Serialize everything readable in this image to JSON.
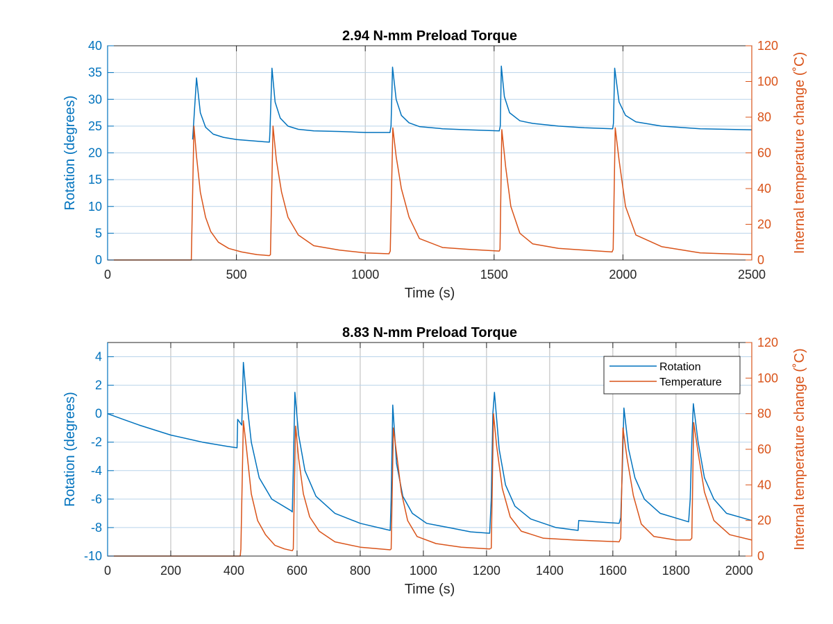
{
  "colors": {
    "rotation": "#0072bd",
    "temperature": "#d95319",
    "grid_blue": "#b9d3ea",
    "grid_gray": "#b8b8b8",
    "axes": "#262626"
  },
  "chart_data": [
    {
      "type": "line",
      "title": "2.94 N-mm Preload Torque",
      "xlabel": "Time (s)",
      "ylabel": "Rotation (degrees)",
      "ylabel_right": "Internal temperature change (˚C)",
      "xlim": [
        0,
        2500
      ],
      "ylim": [
        0,
        40
      ],
      "ylim_right": [
        0,
        120
      ],
      "xticks": [
        0,
        500,
        1000,
        1500,
        2000,
        2500
      ],
      "yticks": [
        0,
        5,
        10,
        15,
        20,
        25,
        30,
        35,
        40
      ],
      "yticks_right": [
        0,
        20,
        40,
        60,
        80,
        100,
        120
      ],
      "xtick_labels": [
        "0",
        "500",
        "1000",
        "1500",
        "2000",
        "2500"
      ],
      "ytick_labels": [
        "0",
        "5",
        "10",
        "15",
        "20",
        "25",
        "30",
        "35",
        "40"
      ],
      "ytick_labels_right": [
        "0",
        "20",
        "40",
        "60",
        "80",
        "100",
        "120"
      ],
      "grid": true,
      "legend": null,
      "series": [
        {
          "axis": "left",
          "color_key": "rotation",
          "x": [
            330,
            345,
            360,
            380,
            410,
            450,
            500,
            550,
            600,
            628,
            630,
            638,
            650,
            670,
            700,
            740,
            800,
            900,
            1000,
            1096,
            1100,
            1106,
            1120,
            1140,
            1170,
            1210,
            1300,
            1400,
            1520,
            1524,
            1528,
            1540,
            1560,
            1600,
            1650,
            1750,
            1850,
            1960,
            1963,
            1968,
            1985,
            2010,
            2050,
            2150,
            2300,
            2500
          ],
          "y": [
            22.5,
            34.0,
            27.5,
            24.8,
            23.5,
            22.9,
            22.5,
            22.3,
            22.1,
            22.0,
            24.0,
            35.8,
            29.5,
            26.5,
            25.0,
            24.4,
            24.1,
            24.0,
            23.8,
            23.8,
            25.0,
            36.0,
            30.0,
            27.0,
            25.6,
            24.9,
            24.5,
            24.3,
            24.1,
            25.0,
            36.2,
            30.5,
            27.5,
            26.0,
            25.5,
            25.0,
            24.7,
            24.5,
            25.5,
            35.8,
            29.5,
            27.0,
            25.8,
            25.0,
            24.5,
            24.3
          ]
        },
        {
          "axis": "right",
          "color_key": "temperature",
          "x": [
            0,
            325,
            335,
            345,
            360,
            380,
            400,
            430,
            470,
            520,
            580,
            628,
            632,
            642,
            655,
            675,
            700,
            740,
            800,
            900,
            1000,
            1092,
            1097,
            1107,
            1120,
            1140,
            1170,
            1210,
            1300,
            1400,
            1520,
            1523,
            1530,
            1545,
            1565,
            1600,
            1650,
            1750,
            1850,
            1958,
            1962,
            1970,
            1985,
            2010,
            2050,
            2150,
            2300,
            2500
          ],
          "y": [
            0,
            0,
            75,
            58,
            38,
            24,
            16,
            10,
            6.5,
            4.5,
            3.0,
            2.5,
            3.0,
            75,
            56,
            38,
            24,
            14,
            8,
            5.5,
            4.0,
            3.5,
            5.0,
            74,
            58,
            40,
            24,
            12,
            7,
            6,
            5.0,
            6.0,
            73,
            52,
            30,
            15,
            9,
            6.5,
            5.5,
            4.5,
            6.0,
            74,
            56,
            30,
            14,
            7.5,
            4.0,
            3.0
          ]
        }
      ]
    },
    {
      "type": "line",
      "title": "8.83 N-mm Preload Torque",
      "xlabel": "Time (s)",
      "ylabel": "Rotation (degrees)",
      "ylabel_right": "Internal temperature change (˚C)",
      "xlim": [
        0,
        2040
      ],
      "ylim": [
        -10,
        5
      ],
      "ylim_right": [
        0,
        120
      ],
      "xticks": [
        0,
        200,
        400,
        600,
        800,
        1000,
        1200,
        1400,
        1600,
        1800,
        2000
      ],
      "yticks": [
        -10,
        -8,
        -6,
        -4,
        -2,
        0,
        2,
        4
      ],
      "yticks_right": [
        0,
        20,
        40,
        60,
        80,
        100,
        120
      ],
      "xtick_labels": [
        "0",
        "200",
        "400",
        "600",
        "800",
        "1000",
        "1200",
        "1400",
        "1600",
        "1800",
        "2000"
      ],
      "ytick_labels": [
        "-10",
        "-8",
        "-6",
        "-4",
        "-2",
        "0",
        "2",
        "4"
      ],
      "ytick_labels_right": [
        "0",
        "20",
        "40",
        "60",
        "80",
        "100",
        "120"
      ],
      "grid": true,
      "legend": {
        "placement": "top-right",
        "entries": [
          "Rotation",
          "Temperature"
        ]
      },
      "series": [
        {
          "name": "Rotation",
          "axis": "left",
          "color_key": "rotation",
          "x": [
            0,
            50,
            100,
            200,
            300,
            380,
            410,
            412,
            425,
            430,
            440,
            455,
            480,
            520,
            580,
            585,
            588,
            593,
            605,
            625,
            660,
            720,
            800,
            895,
            898,
            903,
            915,
            935,
            965,
            1010,
            1080,
            1150,
            1210,
            1215,
            1220,
            1225,
            1240,
            1260,
            1290,
            1340,
            1420,
            1490,
            1492,
            1550,
            1620,
            1625,
            1630,
            1635,
            1650,
            1670,
            1700,
            1750,
            1840,
            1845,
            1850,
            1855,
            1870,
            1890,
            1920,
            1960,
            2040
          ],
          "y": [
            0,
            -0.4,
            -0.8,
            -1.5,
            -2.0,
            -2.3,
            -2.4,
            -0.4,
            -0.8,
            3.6,
            1.0,
            -2.0,
            -4.5,
            -6.0,
            -6.8,
            -6.9,
            -4.0,
            1.5,
            -1.5,
            -4.0,
            -5.8,
            -7.0,
            -7.7,
            -8.2,
            -6.0,
            0.6,
            -3.5,
            -5.8,
            -7.0,
            -7.7,
            -8.0,
            -8.3,
            -8.4,
            -6.0,
            0.0,
            1.5,
            -2.5,
            -5.0,
            -6.5,
            -7.4,
            -8.0,
            -8.2,
            -7.5,
            -7.6,
            -7.7,
            -7.3,
            -4.0,
            0.4,
            -2.5,
            -4.5,
            -6.0,
            -7.0,
            -7.6,
            -6.0,
            -2.0,
            0.7,
            -2.0,
            -4.5,
            -6.0,
            -7.0,
            -7.5
          ]
        },
        {
          "name": "Temperature",
          "axis": "right",
          "color_key": "temperature",
          "x": [
            0,
            300,
            420,
            422,
            430,
            440,
            455,
            475,
            500,
            530,
            560,
            585,
            588,
            595,
            605,
            620,
            640,
            670,
            720,
            800,
            895,
            898,
            905,
            915,
            930,
            950,
            980,
            1040,
            1120,
            1210,
            1215,
            1222,
            1232,
            1250,
            1275,
            1310,
            1380,
            1480,
            1620,
            1625,
            1632,
            1645,
            1665,
            1690,
            1730,
            1800,
            1845,
            1850,
            1856,
            1870,
            1890,
            1920,
            1970,
            2040
          ],
          "y": [
            0,
            0,
            0,
            4,
            76,
            60,
            35,
            20,
            12,
            6,
            4,
            3,
            4,
            73,
            55,
            35,
            22,
            14,
            8,
            5,
            3.5,
            4,
            72,
            58,
            36,
            20,
            11,
            7,
            5,
            4,
            4.5,
            80,
            62,
            38,
            22,
            14,
            10,
            9,
            8,
            10,
            72,
            55,
            34,
            18,
            11,
            9,
            9,
            10,
            75,
            58,
            36,
            20,
            12,
            9
          ]
        }
      ]
    }
  ]
}
